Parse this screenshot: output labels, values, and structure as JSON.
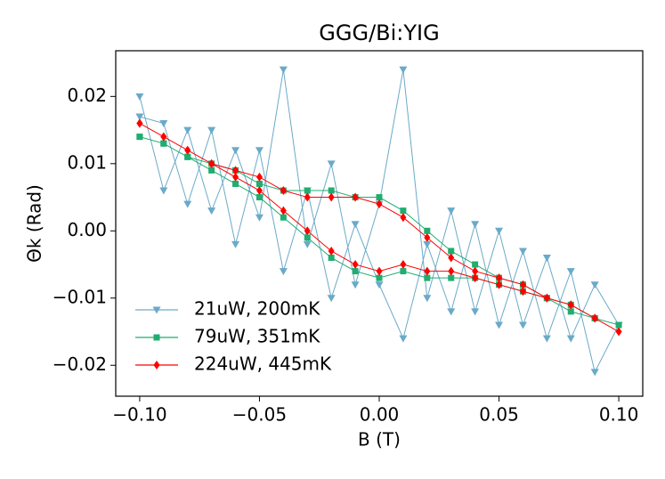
{
  "chart_data": {
    "type": "line",
    "title": "GGG/Bi:YIG",
    "xlabel": "B (T)",
    "ylabel": "Θk (Rad)",
    "xlim": [
      -0.11,
      0.11
    ],
    "ylim": [
      -0.0246,
      0.0268
    ],
    "xticks": [
      {
        "value": -0.1,
        "label": "−0.10"
      },
      {
        "value": -0.05,
        "label": "−0.05"
      },
      {
        "value": 0,
        "label": "0.00"
      },
      {
        "value": 0.05,
        "label": "0.05"
      },
      {
        "value": 0.1,
        "label": "0.10"
      }
    ],
    "yticks": [
      {
        "value": -0.02,
        "label": "−0.02"
      },
      {
        "value": -0.01,
        "label": "−0.01"
      },
      {
        "value": 0,
        "label": "0.00"
      },
      {
        "value": 0.01,
        "label": "0.01"
      },
      {
        "value": 0.02,
        "label": "0.02"
      }
    ],
    "legend": "lower left",
    "x": [
      -0.1,
      -0.09,
      -0.08,
      -0.07,
      -0.06,
      -0.05,
      -0.04,
      -0.03,
      -0.02,
      -0.01,
      0,
      0.01,
      0.02,
      0.03,
      0.04,
      0.05,
      0.06,
      0.07,
      0.08,
      0.09,
      0.1,
      0.09,
      0.08,
      0.07,
      0.06,
      0.05,
      0.04,
      0.03,
      0.02,
      0.01,
      0,
      -0.01,
      -0.02,
      -0.03,
      -0.04,
      -0.05,
      -0.06,
      -0.07,
      -0.08,
      -0.09,
      -0.1
    ],
    "series": [
      {
        "name": "21uW, 200mK",
        "color": "#6aaac8",
        "marker": "triangle-down",
        "values": [
          0.02,
          0.006,
          0.015,
          0.003,
          0.012,
          0.002,
          0.024,
          -0.002,
          0.01,
          -0.008,
          0.004,
          0.024,
          -0.01,
          0.003,
          -0.012,
          0.0,
          -0.014,
          -0.004,
          -0.016,
          -0.008,
          -0.014,
          -0.021,
          -0.006,
          -0.016,
          -0.003,
          -0.014,
          0.001,
          -0.012,
          -0.002,
          -0.016,
          -0.008,
          0.001,
          -0.01,
          0.006,
          -0.006,
          0.012,
          -0.002,
          0.015,
          0.004,
          0.016,
          0.017
        ]
      },
      {
        "name": "79uW, 351mK",
        "color": "#1fad70",
        "marker": "square",
        "values": [
          0.014,
          0.013,
          0.011,
          0.01,
          0.009,
          0.007,
          0.006,
          0.006,
          0.006,
          0.005,
          0.005,
          0.003,
          0.0,
          -0.003,
          -0.005,
          -0.007,
          -0.008,
          -0.01,
          -0.011,
          -0.013,
          -0.014,
          -0.013,
          -0.012,
          -0.01,
          -0.009,
          -0.008,
          -0.007,
          -0.007,
          -0.007,
          -0.006,
          -0.007,
          -0.006,
          -0.004,
          -0.001,
          0.002,
          0.005,
          0.007,
          0.009,
          0.011,
          0.013,
          0.014
        ]
      },
      {
        "name": "224uW, 445mK",
        "color": "#ff0000",
        "marker": "diamond",
        "values": [
          0.016,
          0.014,
          0.012,
          0.01,
          0.009,
          0.008,
          0.006,
          0.005,
          0.005,
          0.005,
          0.004,
          0.002,
          -0.001,
          -0.004,
          -0.006,
          -0.007,
          -0.008,
          -0.01,
          -0.011,
          -0.013,
          -0.015,
          -0.013,
          -0.011,
          -0.01,
          -0.009,
          -0.008,
          -0.007,
          -0.006,
          -0.006,
          -0.005,
          -0.006,
          -0.005,
          -0.003,
          0.0,
          0.003,
          0.006,
          0.008,
          0.01,
          0.012,
          0.014,
          0.016
        ]
      }
    ]
  }
}
